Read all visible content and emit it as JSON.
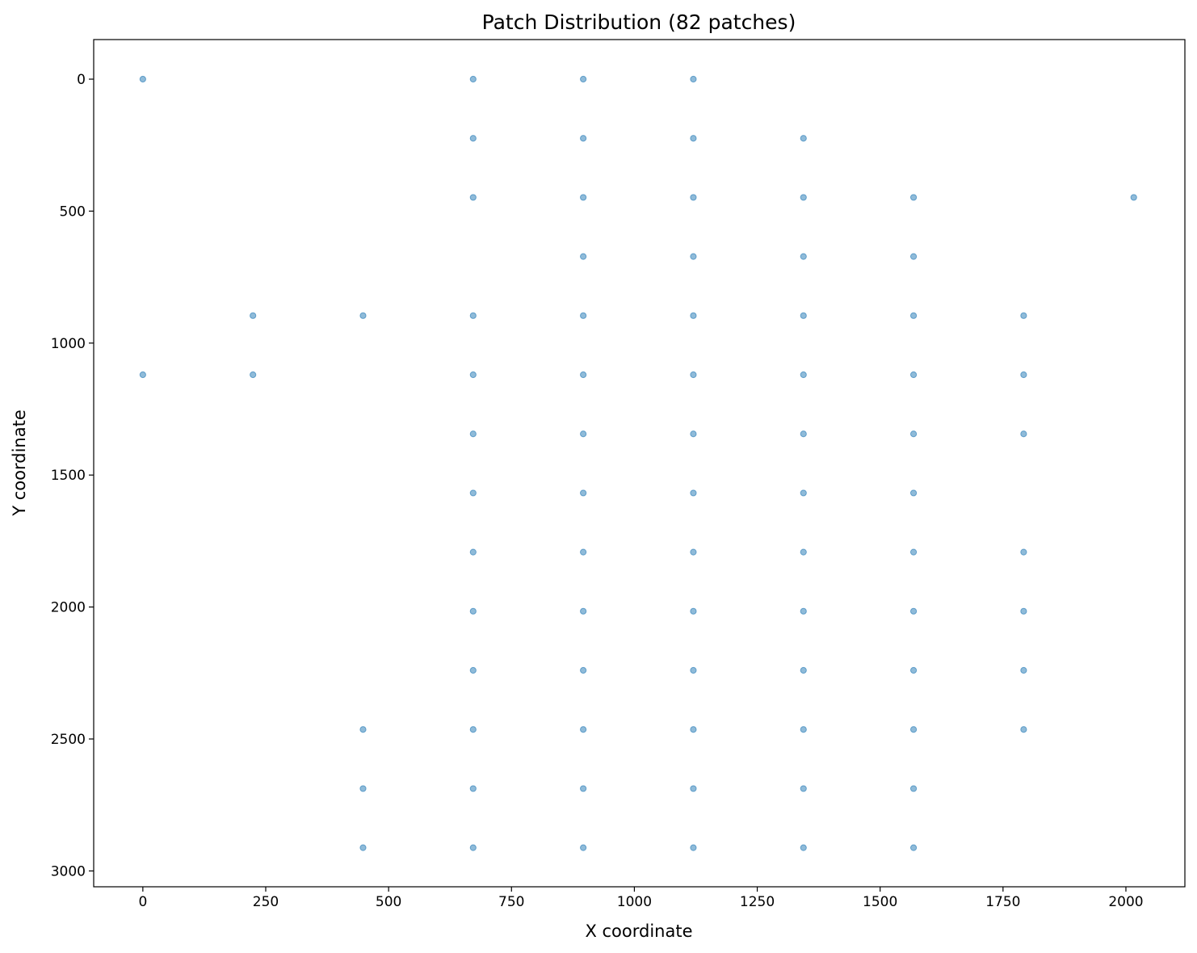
{
  "chart_data": {
    "type": "scatter",
    "title": "Patch Distribution (82 patches)",
    "xlabel": "X coordinate",
    "ylabel": "Y coordinate",
    "xlim": [
      -100,
      2120
    ],
    "ylim": [
      3060,
      -150
    ],
    "y_inverted": true,
    "grid": false,
    "x_ticks": [
      "0",
      "250",
      "500",
      "750",
      "1000",
      "1250",
      "1500",
      "1750",
      "2000"
    ],
    "y_ticks": [
      "0",
      "500",
      "1000",
      "1500",
      "2000",
      "2500",
      "3000"
    ],
    "point_color": "#1f77b4",
    "points": [
      [
        0,
        0
      ],
      [
        672,
        0
      ],
      [
        896,
        0
      ],
      [
        1120,
        0
      ],
      [
        672,
        224
      ],
      [
        896,
        224
      ],
      [
        1120,
        224
      ],
      [
        1344,
        224
      ],
      [
        672,
        448
      ],
      [
        896,
        448
      ],
      [
        1120,
        448
      ],
      [
        1344,
        448
      ],
      [
        1568,
        448
      ],
      [
        2016,
        448
      ],
      [
        896,
        672
      ],
      [
        1120,
        672
      ],
      [
        1344,
        672
      ],
      [
        1568,
        672
      ],
      [
        224,
        896
      ],
      [
        448,
        896
      ],
      [
        672,
        896
      ],
      [
        896,
        896
      ],
      [
        1120,
        896
      ],
      [
        1344,
        896
      ],
      [
        1568,
        896
      ],
      [
        1792,
        896
      ],
      [
        0,
        1120
      ],
      [
        224,
        1120
      ],
      [
        672,
        1120
      ],
      [
        896,
        1120
      ],
      [
        1120,
        1120
      ],
      [
        1344,
        1120
      ],
      [
        1568,
        1120
      ],
      [
        1792,
        1120
      ],
      [
        672,
        1344
      ],
      [
        896,
        1344
      ],
      [
        1120,
        1344
      ],
      [
        1344,
        1344
      ],
      [
        1568,
        1344
      ],
      [
        1792,
        1344
      ],
      [
        672,
        1568
      ],
      [
        896,
        1568
      ],
      [
        1120,
        1568
      ],
      [
        1344,
        1568
      ],
      [
        1568,
        1568
      ],
      [
        672,
        1792
      ],
      [
        896,
        1792
      ],
      [
        1120,
        1792
      ],
      [
        1344,
        1792
      ],
      [
        1568,
        1792
      ],
      [
        1792,
        1792
      ],
      [
        672,
        2016
      ],
      [
        896,
        2016
      ],
      [
        1120,
        2016
      ],
      [
        1344,
        2016
      ],
      [
        1568,
        2016
      ],
      [
        1792,
        2016
      ],
      [
        672,
        2240
      ],
      [
        896,
        2240
      ],
      [
        1120,
        2240
      ],
      [
        1344,
        2240
      ],
      [
        1568,
        2240
      ],
      [
        1792,
        2240
      ],
      [
        448,
        2464
      ],
      [
        672,
        2464
      ],
      [
        896,
        2464
      ],
      [
        1120,
        2464
      ],
      [
        1344,
        2464
      ],
      [
        1568,
        2464
      ],
      [
        1792,
        2464
      ],
      [
        448,
        2688
      ],
      [
        672,
        2688
      ],
      [
        896,
        2688
      ],
      [
        1120,
        2688
      ],
      [
        1344,
        2688
      ],
      [
        1568,
        2688
      ],
      [
        448,
        2912
      ],
      [
        672,
        2912
      ],
      [
        896,
        2912
      ],
      [
        1120,
        2912
      ],
      [
        1344,
        2912
      ],
      [
        1568,
        2912
      ]
    ]
  }
}
